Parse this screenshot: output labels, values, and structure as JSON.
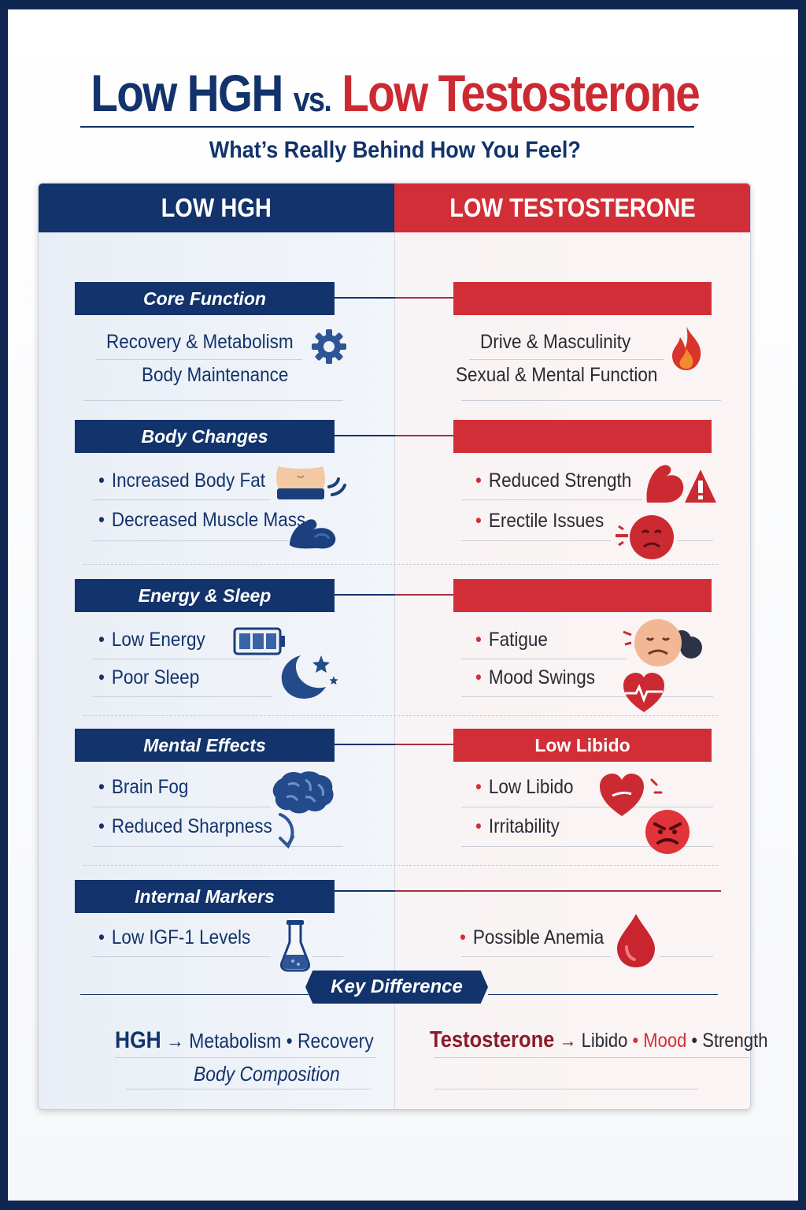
{
  "title": {
    "part1": "Low HGH",
    "vs": "vs.",
    "part2": "Low Testosterone"
  },
  "subtitle": "What’s Really Behind How You Feel?",
  "columns": {
    "left": "LOW HGH",
    "right": "LOW TESTOSTERONE"
  },
  "sections": [
    {
      "left_label": "Core Function",
      "right_label": "",
      "left_items": [
        "Recovery & Metabolism",
        "Body Maintenance"
      ],
      "right_items": [
        "Drive & Masculinity",
        "Sexual & Mental Function"
      ]
    },
    {
      "left_label": "Body Changes",
      "right_label": "",
      "left_items": [
        "Increased Body Fat",
        "Decreased Muscle Mass"
      ],
      "right_items": [
        "Reduced Strength",
        "Erectile Issues"
      ]
    },
    {
      "left_label": "Energy & Sleep",
      "right_label": "",
      "left_items": [
        "Low Energy",
        "Poor Sleep"
      ],
      "right_items": [
        "Fatigue",
        "Mood Swings"
      ]
    },
    {
      "left_label": "Mental Effects",
      "right_label": "Low Libido",
      "left_items": [
        "Brain Fog",
        "Reduced Sharpness"
      ],
      "right_items": [
        "Low Libido",
        "Irritability"
      ]
    },
    {
      "left_label": "Internal Markers",
      "right_label": "",
      "left_items": [
        "Low IGF-1 Levels"
      ],
      "right_items": [
        "Possible Anemia"
      ]
    }
  ],
  "key_difference": {
    "label": "Key Difference",
    "hgh": {
      "name": "HGH",
      "arrow": "→",
      "a": "Metabolism",
      "sep": "•",
      "b": "Recovery",
      "c": "Body Composition"
    },
    "testosterone": {
      "name": "Testosterone",
      "arrow": "→",
      "a": "Libido",
      "sep1": "•",
      "b": "Mood",
      "sep2": "•",
      "c": "Strength"
    }
  },
  "colors": {
    "navy": "#12336b",
    "red": "#d22e37",
    "dark_red": "#8a1c2a"
  },
  "icons": [
    "gear-icon",
    "flame-icon",
    "belly-icon",
    "flexed-arm-icon",
    "weak-arm-warning-icon",
    "sad-face-icon",
    "battery-icon",
    "moon-stars-icon",
    "tired-face-icon",
    "heartbeat-icon",
    "brain-icon",
    "curved-arrow-icon",
    "broken-heart-icon",
    "angry-face-icon",
    "test-tube-icon",
    "blood-drop-icon"
  ]
}
